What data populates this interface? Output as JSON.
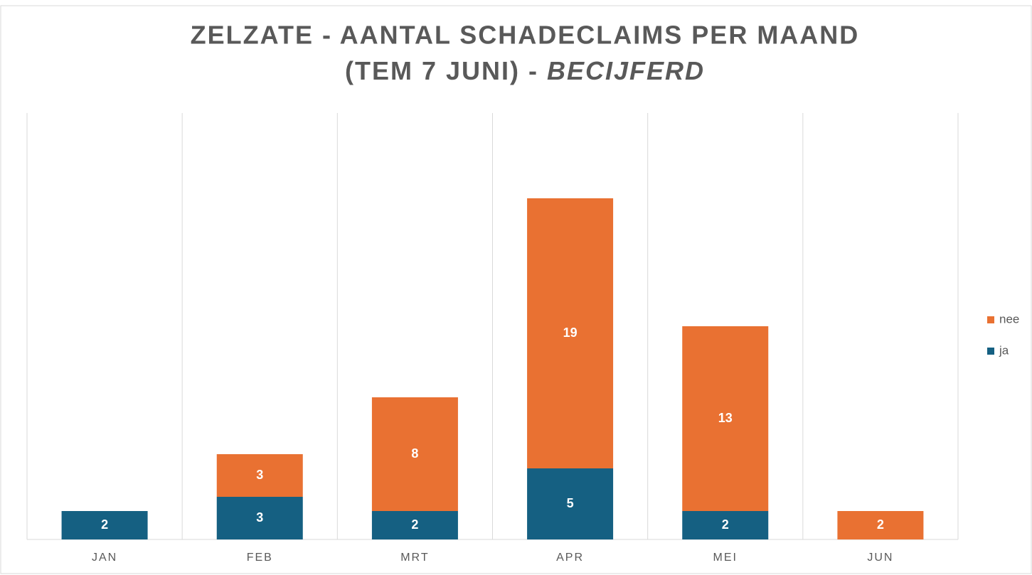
{
  "chart_data": {
    "type": "stacked_bar",
    "title": [
      "ZELZATE - AANTAL SCHADECLAIMS PER MAAND",
      "(TEM 7 JUNI) -",
      "BECIJFERD"
    ],
    "categories": [
      "JAN",
      "FEB",
      "MRT",
      "APR",
      "MEI",
      "JUN"
    ],
    "series": [
      {
        "name": "ja",
        "color": "#156082",
        "values": [
          2,
          3,
          2,
          5,
          2,
          null
        ]
      },
      {
        "name": "nee",
        "color": "#e97132",
        "values": [
          null,
          3,
          8,
          19,
          13,
          2
        ]
      }
    ],
    "ylim": [
      0,
      30
    ],
    "grid": "vertical",
    "legend": "right"
  }
}
